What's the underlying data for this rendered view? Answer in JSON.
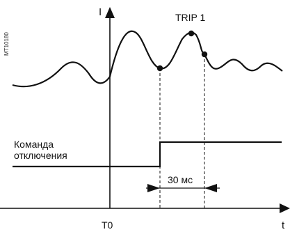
{
  "side_code": "MT10180",
  "axes": {
    "y_label": "I",
    "x_label": "t",
    "origin_label": "T0"
  },
  "trip_label": "TRIP 1",
  "command_label": {
    "line1": "Команда",
    "line2": "отключения"
  },
  "interval_label": "30 мс"
}
